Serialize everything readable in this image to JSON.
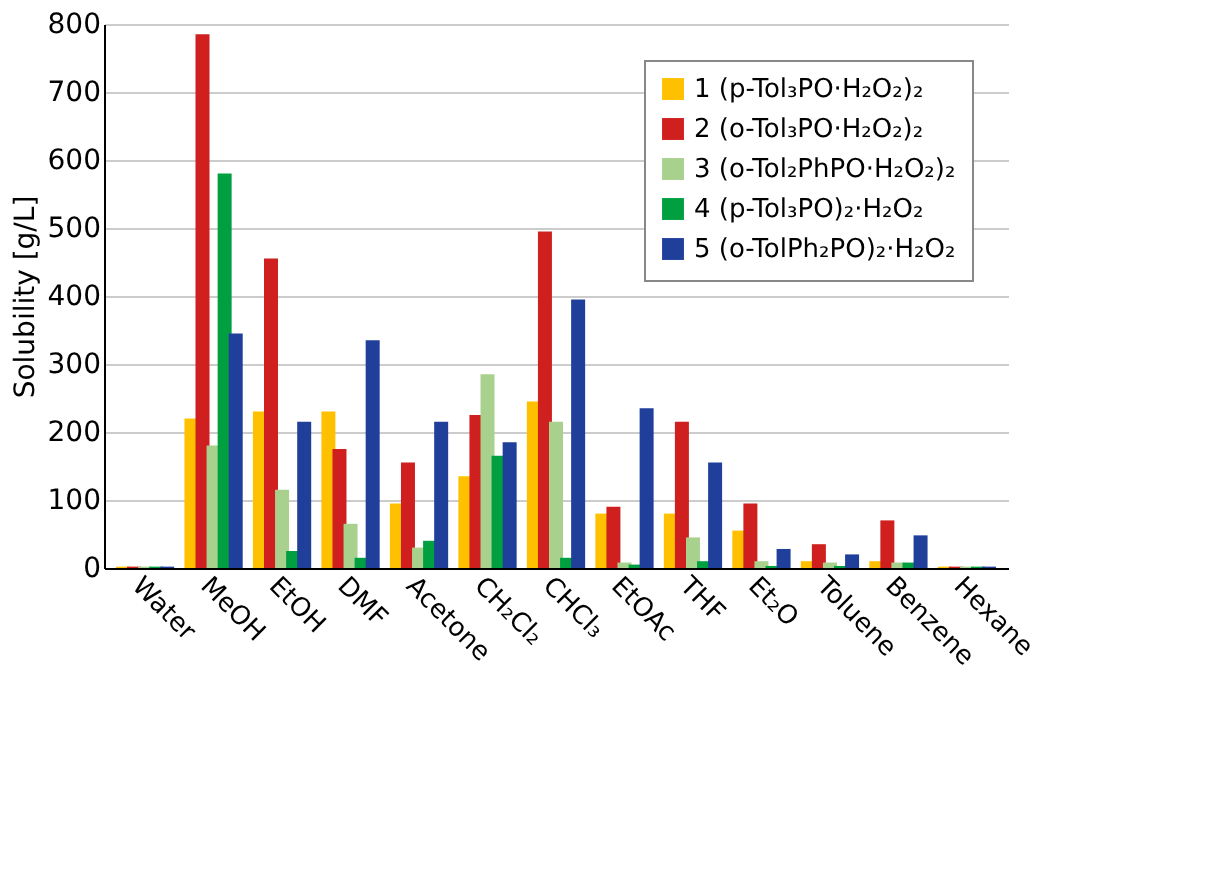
{
  "chart_data": {
    "type": "bar",
    "ylabel": "Solubility [g/L]",
    "categories": [
      "Water",
      "MeOH",
      "EtOH",
      "DMF",
      "Acetone",
      "CH₂Cl₂",
      "CHCl₃",
      "EtOAc",
      "THF",
      "Et₂O",
      "Toluene",
      "Benzene",
      "Hexane"
    ],
    "series": [
      {
        "name": "1 (p-Tol₃PO·H₂O₂)₂",
        "color": "#ffc000",
        "values": [
          2,
          220,
          230,
          230,
          95,
          135,
          245,
          80,
          80,
          55,
          10,
          10,
          2
        ]
      },
      {
        "name": "2 (o-Tol₃PO·H₂O₂)₂",
        "color": "#d01f1f",
        "values": [
          2,
          785,
          455,
          175,
          155,
          225,
          495,
          90,
          215,
          95,
          35,
          70,
          2
        ]
      },
      {
        "name": "3 (o-Tol₂PhPO·H₂O₂)₂",
        "color": "#a9d18e",
        "values": [
          2,
          180,
          115,
          65,
          30,
          285,
          215,
          8,
          45,
          10,
          8,
          8,
          2
        ]
      },
      {
        "name": "4 (p-Tol₃PO)₂·H₂O₂",
        "color": "#00a040",
        "values": [
          2,
          580,
          25,
          15,
          40,
          165,
          15,
          5,
          10,
          3,
          3,
          8,
          2
        ]
      },
      {
        "name": "5 (o-TolPh₂PO)₂·H₂O₂",
        "color": "#203f9a",
        "values": [
          2,
          345,
          215,
          335,
          215,
          185,
          395,
          235,
          155,
          28,
          20,
          48,
          2
        ]
      }
    ],
    "ylim": [
      0,
      800
    ],
    "yticks": [
      0,
      100,
      200,
      300,
      400,
      500,
      600,
      700,
      800
    ],
    "grid": "y",
    "legend": "top right"
  }
}
